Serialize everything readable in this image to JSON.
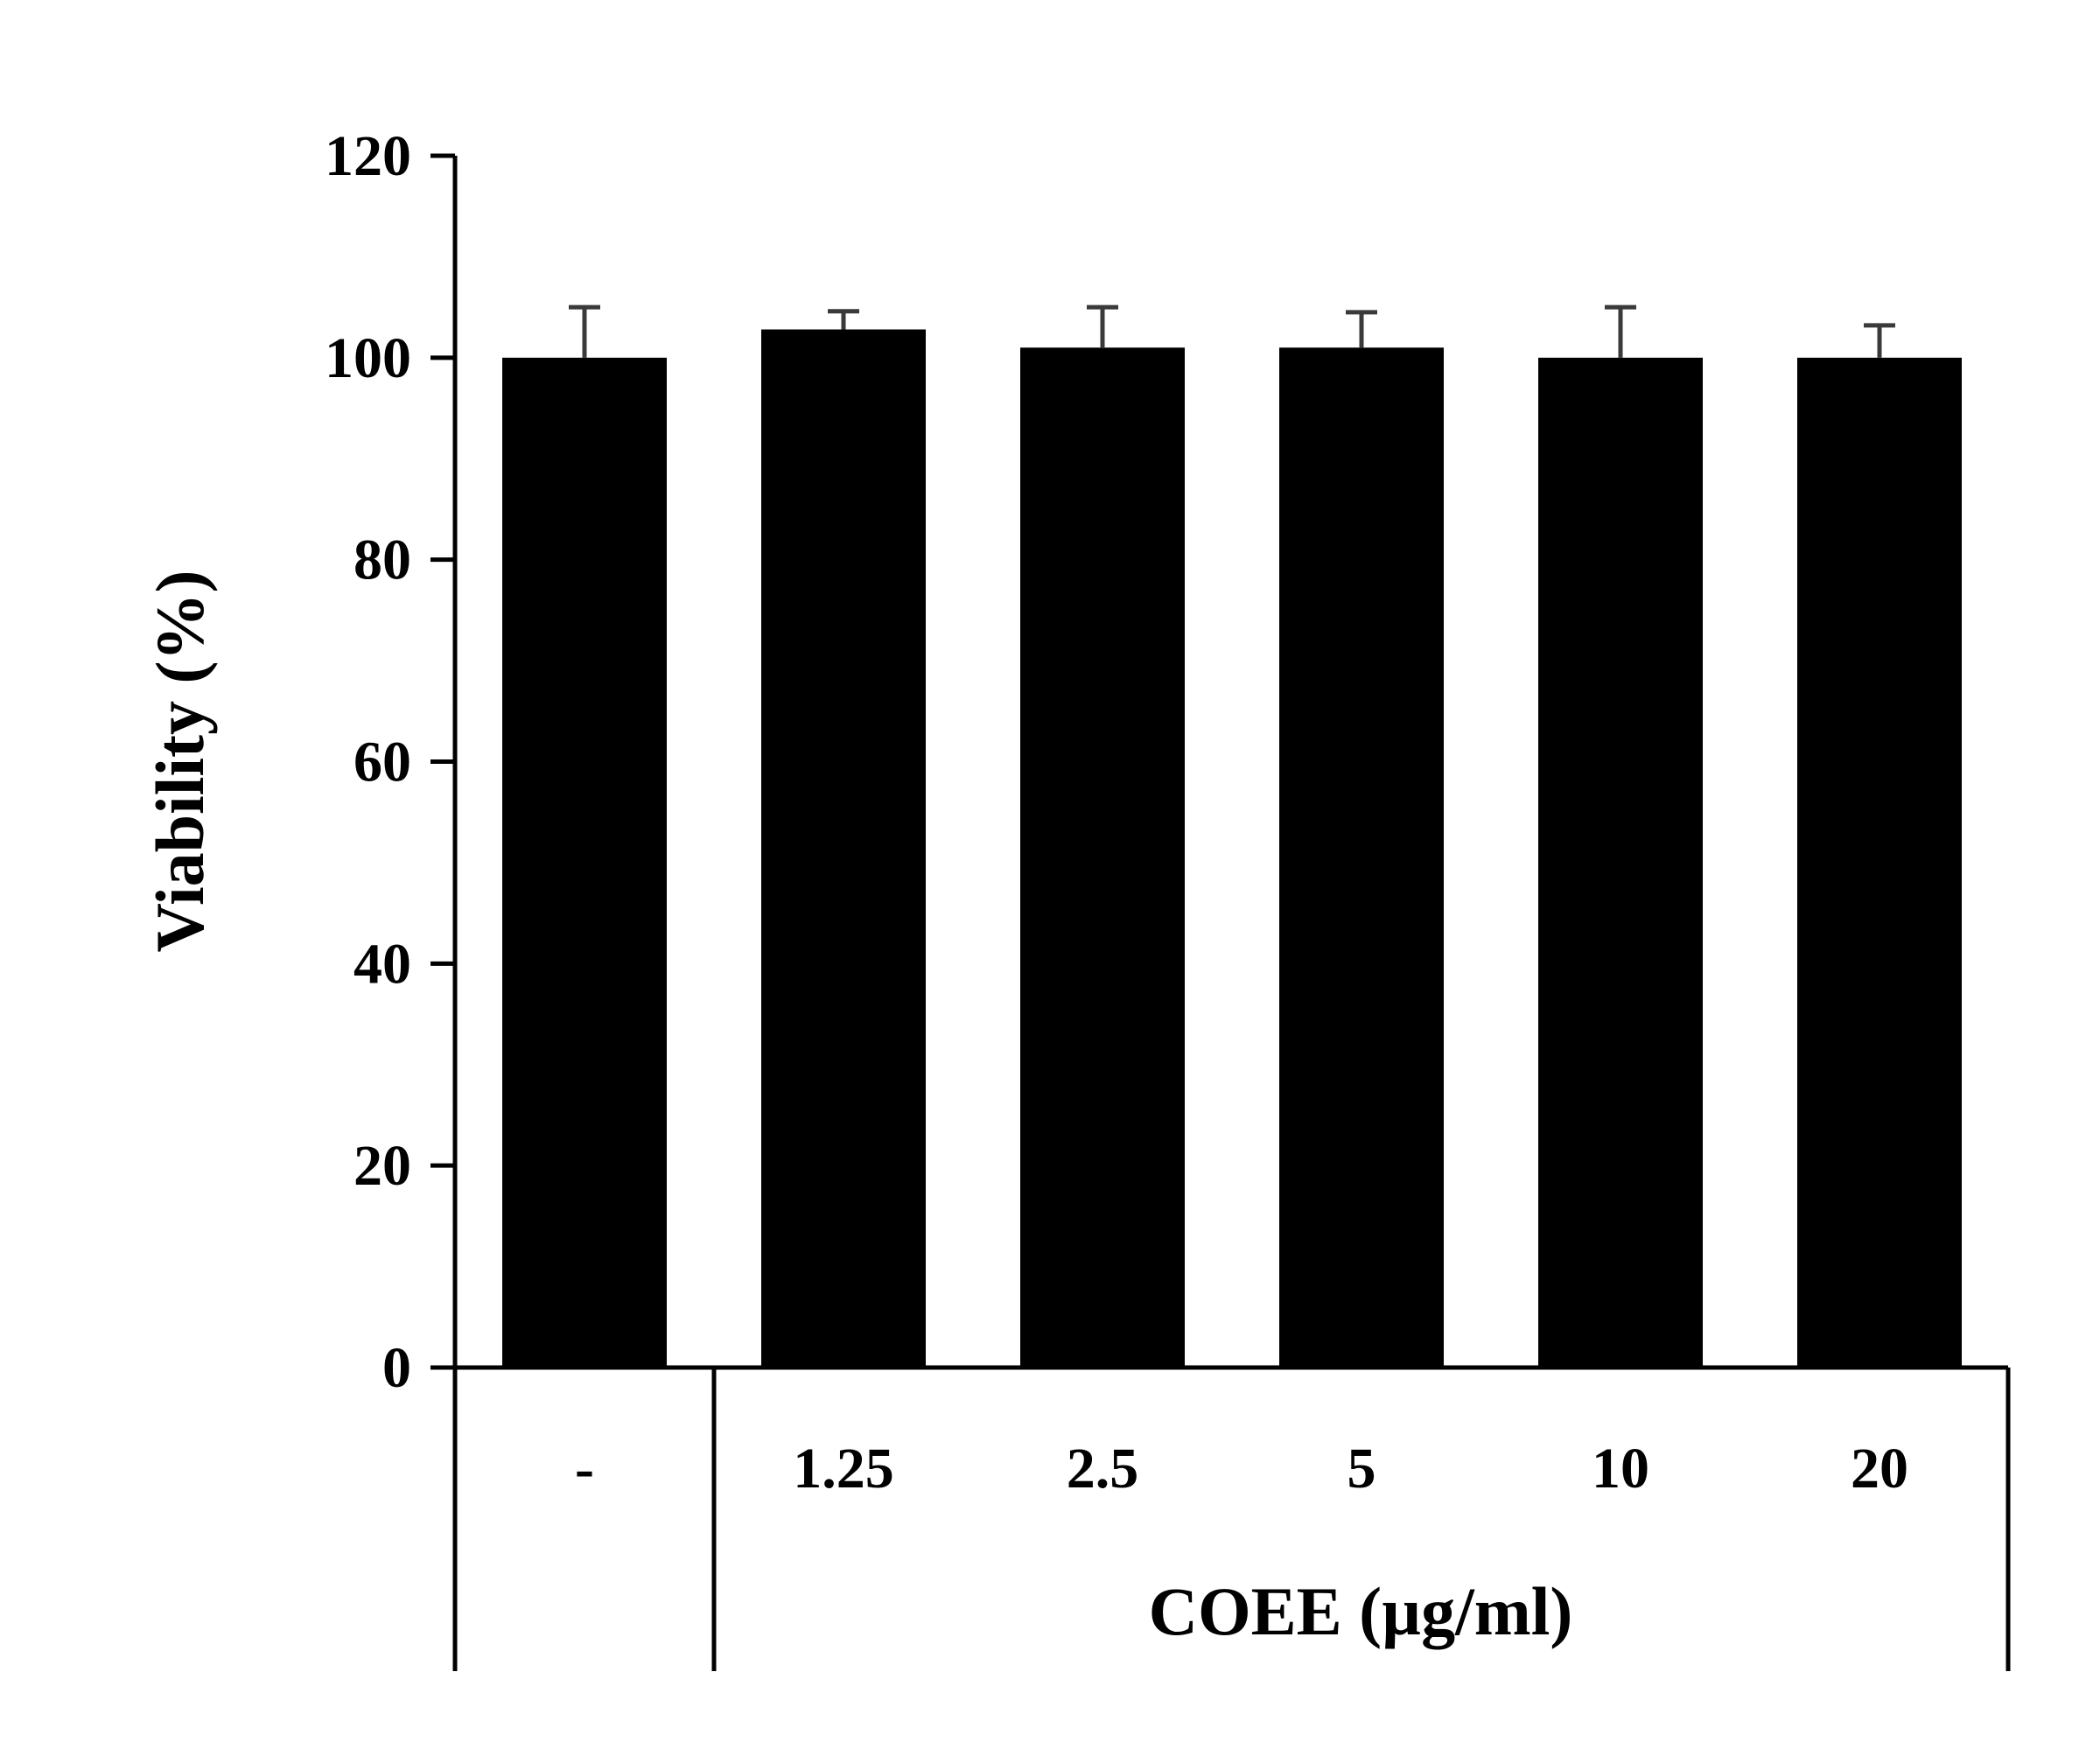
{
  "chart_data": {
    "type": "bar",
    "title": "",
    "xlabel": "COEE (µg/ml)",
    "ylabel": "Viability (%)",
    "categories": [
      "-",
      "1.25",
      "2.5",
      "5",
      "10",
      "20"
    ],
    "series": [
      {
        "values": [
          100,
          102.8,
          101,
          101,
          100,
          100
        ],
        "error": [
          5,
          1.8,
          4,
          3.5,
          5,
          3.2
        ]
      }
    ],
    "ylim": [
      0,
      120
    ],
    "yticks": [
      0,
      20,
      40,
      60,
      80,
      100,
      120
    ],
    "ytick_labels": [
      "0",
      "20",
      "40",
      "60",
      "80",
      "100",
      "120"
    ],
    "grid": false,
    "legend": "none",
    "colors": {
      "bar": "#000000",
      "axis": "#000000",
      "error_bar": "#3a3a3a"
    }
  }
}
